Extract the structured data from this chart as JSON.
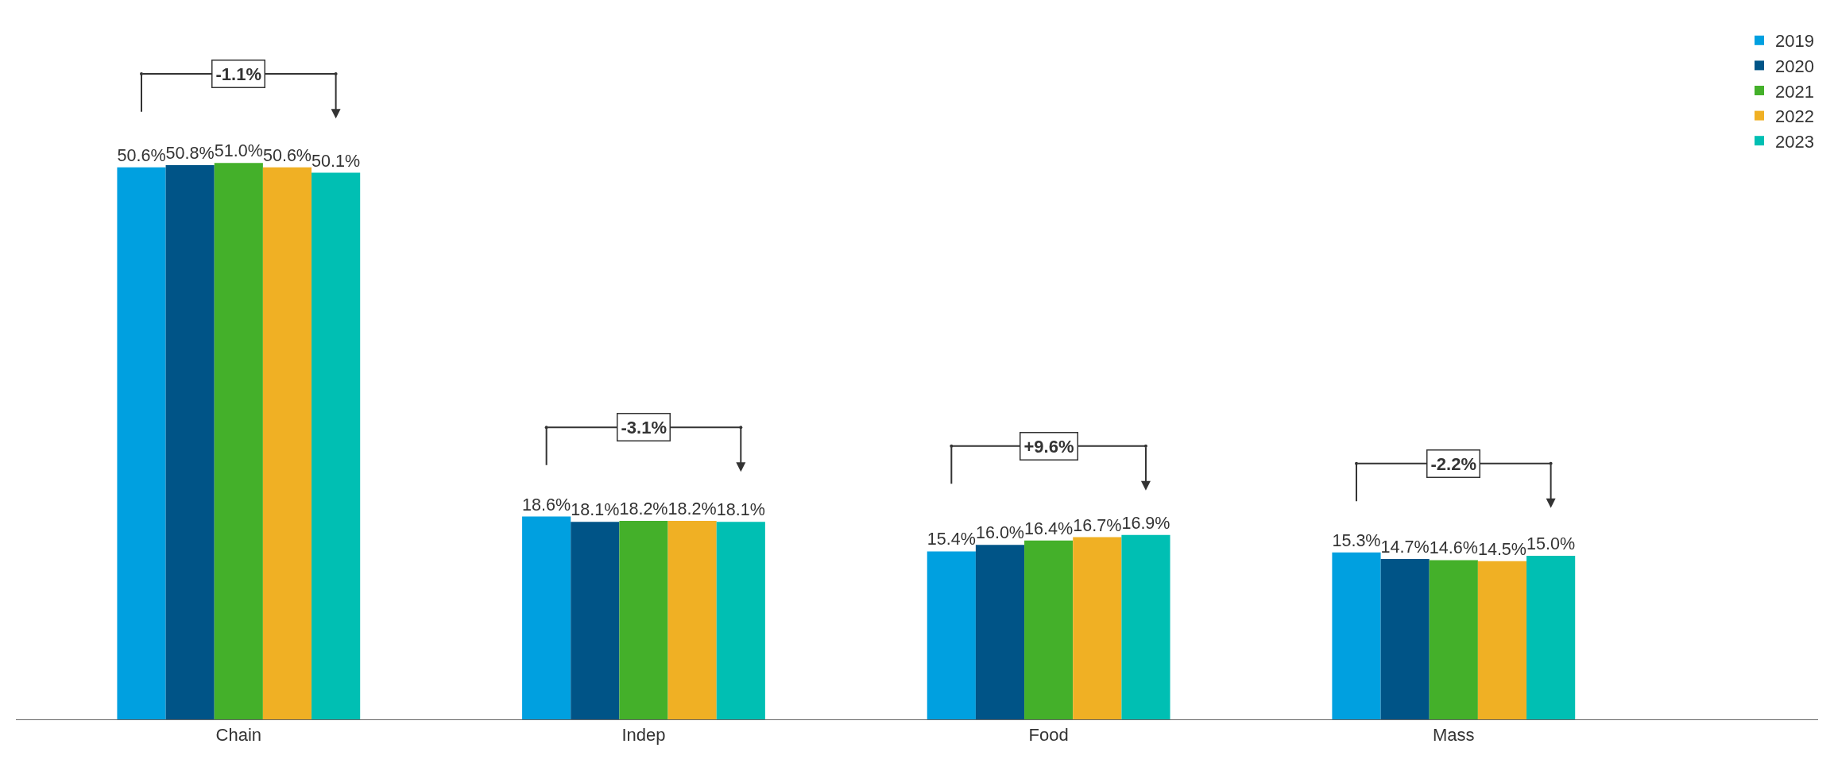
{
  "chart_data": {
    "type": "bar",
    "categories": [
      "Chain",
      "Indep",
      "Food",
      "Mass"
    ],
    "series": [
      {
        "name": "2019",
        "color": "#00a0e0",
        "values": [
          50.6,
          18.6,
          15.4,
          15.3
        ],
        "value_labels": [
          "50.6%",
          "18.6%",
          "15.4%",
          "15.3%"
        ]
      },
      {
        "name": "2020",
        "color": "#005487",
        "values": [
          50.8,
          18.1,
          16.0,
          14.7
        ],
        "value_labels": [
          "50.8%",
          "18.1%",
          "16.0%",
          "14.7%"
        ]
      },
      {
        "name": "2021",
        "color": "#44b02a",
        "values": [
          51.0,
          18.2,
          16.4,
          14.6
        ],
        "value_labels": [
          "51.0%",
          "18.2%",
          "16.4%",
          "14.6%"
        ]
      },
      {
        "name": "2022",
        "color": "#f0b024",
        "values": [
          50.6,
          18.2,
          16.7,
          14.5
        ],
        "value_labels": [
          "50.6%",
          "18.2%",
          "16.7%",
          "14.5%"
        ]
      },
      {
        "name": "2023",
        "color": "#00bfb3",
        "values": [
          50.1,
          18.1,
          16.9,
          15.0
        ],
        "value_labels": [
          "50.1%",
          "18.1%",
          "16.9%",
          "15.0%"
        ]
      }
    ],
    "annotations": [
      "-1.1%",
      "-3.1%",
      "+9.6%",
      "-2.2%"
    ],
    "legend": "top right"
  }
}
